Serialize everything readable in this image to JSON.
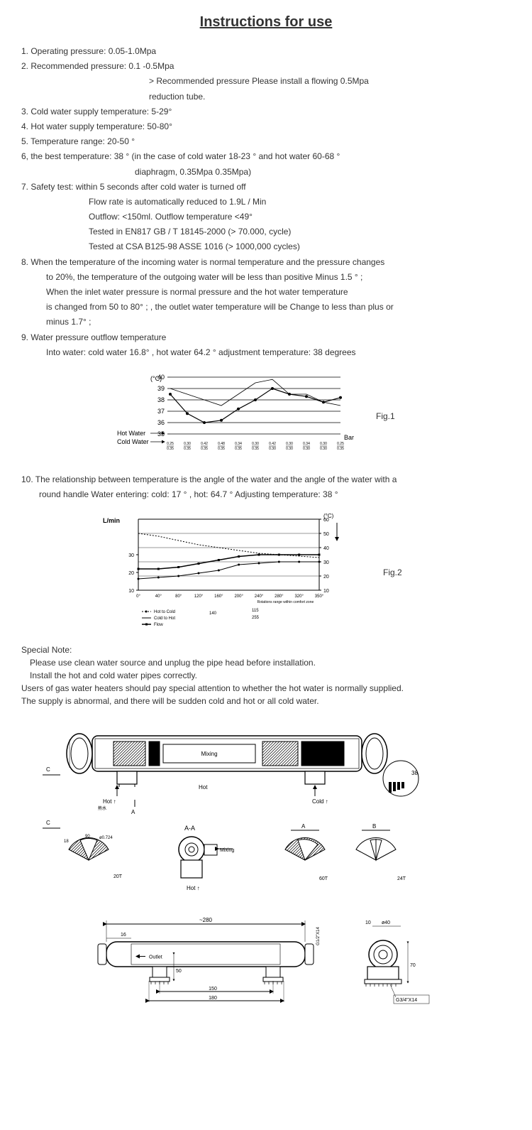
{
  "title": "Instructions for use",
  "items": {
    "i1": "1. Operating pressure:  0.05-1.0Mpa",
    "i2": "2. Recommended pressure:  0.1 -0.5Mpa",
    "i2a": "> Recommended pressure Please install a flowing 0.5Mpa",
    "i2b": "reduction tube.",
    "i3": "3. Cold water supply temperature:  5-29°",
    "i4": "4. Hot water supply temperature:  50-80°",
    "i5": "5. Temperature range:  20-50 °",
    "i6": "6, the best temperature:  38 °   (in the case of cold water 18-23 °  and hot water 60-68 °",
    "i6a": "diaphragm, 0.35Mpa  0.35Mpa)",
    "i7": "7. Safety test: within 5 seconds after cold water is turned off",
    "i7a": "Flow rate is automatically reduced to 1.9L / Min",
    "i7b": "Outflow: <150ml. Outflow temperature <49°",
    "i7c": "Tested in EN817 GB / T 18145-2000 (> 70.000, cycle)",
    "i7d": "Tested at CSA B125-98 ASSE 1016 (> 1000,000 cycles)",
    "i8": "8. When the temperature of the incoming water is normal temperature and the pressure changes",
    "i8a": "to 20%, the temperature of the outgoing water will be less than positive Minus 1.5 °  ;",
    "i8b": "When the inlet water pressure is normal pressure and the hot water temperature",
    "i8c": "is changed from 50 to 80°  ; , the outlet water temperature will be  Change to less than plus or",
    "i8d": "minus 1.7°  ;",
    "i9": "9. Water pressure outflow temperature",
    "i9a": "Into water: cold water 16.8° , hot water 64.2 °  adjustment temperature: 38 degrees",
    "i10": "10. The relationship between temperature is the angle of the water and the angle of the water with a",
    "i10a": "round handle Water entering:  cold: 17 ° ,  hot: 64.7 °  Adjusting  temperature: 38 °"
  },
  "chart1": {
    "type": "line",
    "fig_label": "Fig.1",
    "y_unit": "(°C)",
    "y_ticks": [
      "40",
      "39",
      "38",
      "37",
      "36",
      "35"
    ],
    "x_label_right": "Bar",
    "legend_left_top": "Hot  Water",
    "legend_left_bot": "Cold Water",
    "x_ticks": [
      "0.25\n0.35",
      "0.30\n0.35",
      "0.42\n0.35",
      "0.48\n0.35",
      "0.34\n0.35",
      "0.30\n0.35",
      "0.42\n0.30",
      "0.30\n0.30",
      "0.34\n0.30",
      "0.30\n0.30",
      "0.25\n0.35"
    ],
    "series1": [
      38.5,
      36.8,
      36,
      36.2,
      37.2,
      38,
      39,
      38.5,
      38.3,
      37.8,
      38.2
    ],
    "series2": [
      39,
      38.5,
      38,
      37.5,
      38.5,
      39.5,
      39.8,
      38.5,
      38.5,
      37.8,
      37.5
    ],
    "line_color": "#000000",
    "bg": "#ffffff",
    "grid_color": "#000000"
  },
  "chart2": {
    "type": "line",
    "fig_label": "Fig.2",
    "y_left_unit": "L/min",
    "y_right_unit": "(°C)",
    "y_left_ticks": [
      "30",
      "20",
      "10"
    ],
    "y_right_ticks": [
      "60",
      "50",
      "40",
      "30",
      "20",
      "10"
    ],
    "x_ticks": [
      "0°",
      "40°",
      "80°",
      "120°",
      "160°",
      "200°",
      "240°",
      "280°",
      "320°",
      "350°"
    ],
    "x_note": "Rotations range within comfort  zone",
    "legend_items": [
      "Hot  to Cold",
      "Cold  to Hot",
      "Flow"
    ],
    "mid_labels_a": "140",
    "mid_labels_b": "115",
    "mid_labels_c": "255",
    "series_hot_to_cold": [
      50,
      48,
      45,
      42,
      40,
      38,
      36,
      35,
      34,
      33
    ],
    "series_cold_to_hot": [
      18,
      19,
      20,
      22,
      24,
      28,
      29,
      30,
      30,
      30
    ],
    "series_flow": [
      22,
      22,
      23,
      25,
      27,
      29,
      30,
      30,
      30,
      30
    ],
    "line_color": "#000000",
    "bg": "#ffffff"
  },
  "special_note": {
    "heading": "Special Note:",
    "l1": "Please use clean water source and unplug the pipe head before installation.",
    "l2": "Install the hot and cold water pipes correctly.",
    "l3": "Users of gas water heaters should pay special attention to whether the hot water is normally supplied.",
    "l4": "The supply is abnormal, and there will be sudden cold and hot or all cold water."
  },
  "diagram": {
    "labels": {
      "mixing": "Mixing",
      "hot": "Hot",
      "cold": "Cold",
      "aa": "A-A",
      "a": "A",
      "b": "B",
      "c": "C",
      "outlet": "Outlet",
      "hot_arrow": "Hot",
      "cold_arrow": "Cold"
    },
    "dimensions": {
      "d280": "~280",
      "d150": "150",
      "d180": "180",
      "d16": "16",
      "d50": "50",
      "d38": "38",
      "d40": "ø40",
      "d10": "10",
      "d70": "70",
      "d18": "18",
      "d90": "90",
      "d0724": "ø0.724",
      "d207": "20T",
      "d607": "60T",
      "d247": "24T",
      "g12": "G1/2\"X14",
      "g34": "G3/4\"X14"
    },
    "line_color": "#000000"
  }
}
